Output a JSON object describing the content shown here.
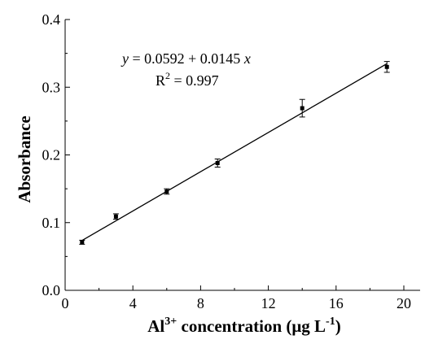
{
  "chart_data": {
    "type": "scatter",
    "xlabel": "Al³⁺ concentration (μg L⁻¹)",
    "xlabel_parts": {
      "base1": "Al",
      "sup1": "3+",
      "base2": " concentration (μg L",
      "sup2": "-1",
      "base3": ")"
    },
    "ylabel": "Absorbance",
    "xlim": [
      0,
      20
    ],
    "ylim": [
      0,
      0.4
    ],
    "xticks": [
      0,
      4,
      8,
      12,
      16,
      20
    ],
    "xtick_labels": [
      "0",
      "4",
      "8",
      "12",
      "16",
      "20"
    ],
    "yticks": [
      0.0,
      0.1,
      0.2,
      0.3,
      0.4
    ],
    "ytick_labels": [
      "0.0",
      "0.1",
      "0.2",
      "0.3",
      "0.4"
    ],
    "grid": false,
    "series": [
      {
        "x": [
          1,
          3,
          6,
          9,
          14,
          19
        ],
        "y": [
          0.071,
          0.109,
          0.146,
          0.188,
          0.269,
          0.33
        ],
        "error": [
          0.003,
          0.004,
          0.004,
          0.006,
          0.013,
          0.008
        ]
      }
    ],
    "fit": {
      "intercept": 0.0592,
      "slope": 0.0145,
      "x_range": [
        1,
        19
      ],
      "equation": {
        "y": "y",
        "rhs": " = 0.0592 + 0.0145 ",
        "x": "x",
        "r_base": "R",
        "r_sup": "2",
        "r_rest": " = 0.997"
      }
    }
  }
}
